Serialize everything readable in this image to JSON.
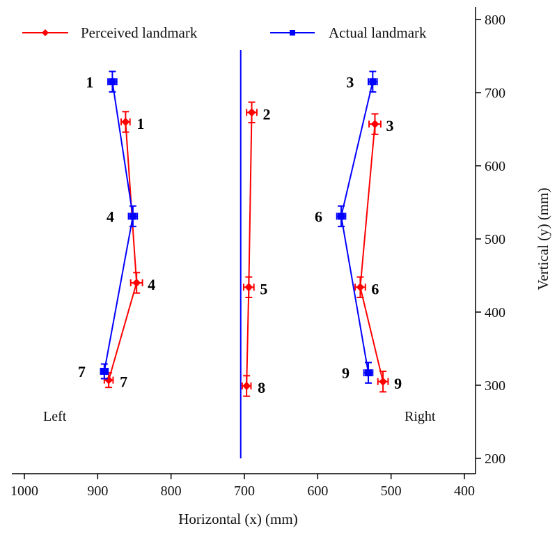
{
  "chart_data": {
    "type": "line",
    "title": "",
    "xlabel": "Horizontal (x) (mm)",
    "ylabel": "Vertical (y) (mm)",
    "xlim": [
      1000,
      400
    ],
    "ylim": [
      200,
      800
    ],
    "x_reversed": true,
    "y_axis_position": "right",
    "xticks": [
      1000,
      900,
      800,
      700,
      600,
      500,
      400
    ],
    "yticks": [
      200,
      300,
      400,
      500,
      600,
      700,
      800
    ],
    "grid": false,
    "legend": "top",
    "region_labels": {
      "left": "Left",
      "right": "Right"
    },
    "midline_x": 705,
    "series": [
      {
        "name": "Perceived landmark",
        "color": "#ff0000",
        "marker": "diamond",
        "groups": [
          {
            "side": "left",
            "points": [
              {
                "label": "1",
                "x": 862,
                "y": 660,
                "xerr": 6,
                "yerr": 14
              },
              {
                "label": "4",
                "x": 847,
                "y": 440,
                "xerr": 8,
                "yerr": 14
              },
              {
                "label": "7",
                "x": 885,
                "y": 307,
                "xerr": 6,
                "yerr": 10
              }
            ]
          },
          {
            "side": "center",
            "points": [
              {
                "label": "2",
                "x": 690,
                "y": 673,
                "xerr": 7,
                "yerr": 14
              },
              {
                "label": "5",
                "x": 694,
                "y": 434,
                "xerr": 7,
                "yerr": 14
              },
              {
                "label": "8",
                "x": 697,
                "y": 299,
                "xerr": 6,
                "yerr": 14
              }
            ]
          },
          {
            "side": "right",
            "points": [
              {
                "label": "3",
                "x": 522,
                "y": 657,
                "xerr": 8,
                "yerr": 14
              },
              {
                "label": "6",
                "x": 542,
                "y": 434,
                "xerr": 7,
                "yerr": 14
              },
              {
                "label": "9",
                "x": 511,
                "y": 305,
                "xerr": 7,
                "yerr": 14
              }
            ]
          }
        ]
      },
      {
        "name": "Actual landmark",
        "color": "#0000ff",
        "marker": "square",
        "groups": [
          {
            "side": "left",
            "points": [
              {
                "label": "1",
                "x": 880,
                "y": 715,
                "xerr": 6,
                "yerr": 14
              },
              {
                "label": "4",
                "x": 852,
                "y": 531,
                "xerr": 6,
                "yerr": 14
              },
              {
                "label": "7",
                "x": 891,
                "y": 319,
                "xerr": 5,
                "yerr": 10
              }
            ]
          },
          {
            "side": "right",
            "points": [
              {
                "label": "3",
                "x": 525,
                "y": 715,
                "xerr": 6,
                "yerr": 14
              },
              {
                "label": "6",
                "x": 568,
                "y": 531,
                "xerr": 6,
                "yerr": 14
              },
              {
                "label": "9",
                "x": 531,
                "y": 317,
                "xerr": 6,
                "yerr": 14
              }
            ]
          }
        ]
      }
    ]
  }
}
